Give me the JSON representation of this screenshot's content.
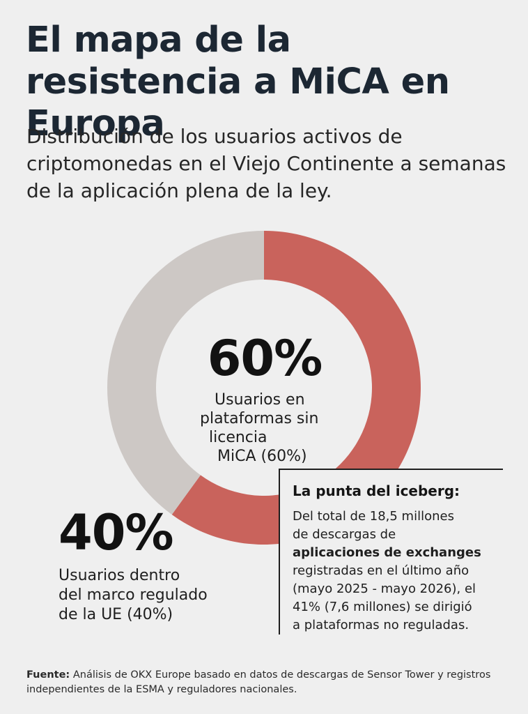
{
  "title": "El mapa de la resistencia a MiCA en Europa",
  "subtitle": "Distribución de los usuarios activos de criptomonedas en el Viejo Continente a semanas de la aplicación plena de la ley.",
  "chart_data": {
    "type": "pie",
    "style": "donut",
    "categories": [
      "Usuarios en plataformas sin licencia MiCA (60%)",
      "Usuarios dentro del marco regulado de la UE (40%)"
    ],
    "values": [
      60,
      40
    ],
    "data_labels": [
      "60%",
      "40%"
    ],
    "colors": [
      "#c9635c",
      "#cdc8c5"
    ],
    "labels": {
      "unlicensed_pct": "60%",
      "unlicensed_lines": [
        "Usuarios en",
        "plataformas sin",
        "licencia",
        "MiCA (60%)"
      ],
      "regulated_pct": "40%",
      "regulated_lines": [
        "Usuarios dentro",
        "del marco regulado",
        "de la UE (40%)"
      ]
    }
  },
  "callout": {
    "title": "La punta del iceberg:",
    "line1": "Del total de 18,5 millones",
    "line2": "de descargas de",
    "line3_bold": "aplicaciones de exchanges",
    "line4": "registradas en el último año",
    "line5": "(mayo 2025 - mayo 2026), el",
    "line6": "41% (7,6 millones) se dirigió",
    "line7": "a plataformas no reguladas."
  },
  "source": {
    "label": "Fuente:",
    "text": "Análisis de OKX Europe basado en datos de descargas de Sensor Tower y registros independientes de la ESMA y reguladores nacionales."
  }
}
